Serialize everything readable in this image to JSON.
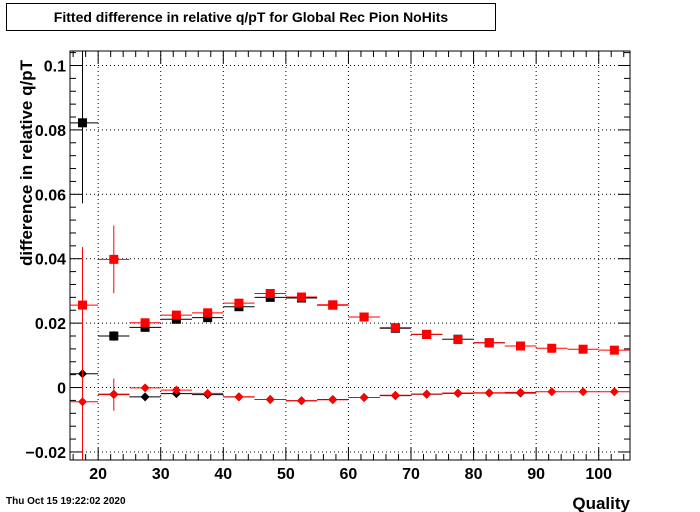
{
  "page": {
    "title": "Fitted difference in relative q/pT for Global Rec Pion NoHits",
    "date_stamp": "Thu Oct 15 19:22:02 2020"
  },
  "chart_data": {
    "type": "scatter",
    "title": "Fitted difference in relative q/pT for Global Rec Pion NoHits",
    "xlabel": "Quality",
    "ylabel": "difference in relative q/pT",
    "xlim": [
      15.5,
      105
    ],
    "ylim": [
      -0.0225,
      0.1045
    ],
    "x_ticks": [
      20,
      30,
      40,
      50,
      60,
      70,
      80,
      90,
      100
    ],
    "x_tick_labels": [
      "20",
      "30",
      "40",
      "50",
      "60",
      "70",
      "80",
      "90",
      "100"
    ],
    "y_ticks": [
      -0.02,
      0,
      0.02,
      0.04,
      0.06,
      0.08,
      0.1
    ],
    "y_tick_labels": [
      "−0.02",
      "0",
      "0.02",
      "0.04",
      "0.06",
      "0.08",
      "0.1"
    ],
    "grid": true,
    "series": [
      {
        "marker": "square",
        "color": "#000000",
        "points": [
          {
            "x": 17.5,
            "y": 0.0822,
            "xerr": 2.5,
            "yerr": 0.025
          },
          {
            "x": 22.5,
            "y": 0.016,
            "xerr": 2.5,
            "yerr": 0.0015
          },
          {
            "x": 27.5,
            "y": 0.0187,
            "xerr": 2.5,
            "yerr": 0.0008
          },
          {
            "x": 32.5,
            "y": 0.0212,
            "xerr": 2.5,
            "yerr": 0.0005
          },
          {
            "x": 37.5,
            "y": 0.0217,
            "xerr": 2.5,
            "yerr": 0.0004
          },
          {
            "x": 42.5,
            "y": 0.0251,
            "xerr": 2.5,
            "yerr": 0.0004
          },
          {
            "x": 47.5,
            "y": 0.028,
            "xerr": 2.5,
            "yerr": 0.0003
          },
          {
            "x": 52.5,
            "y": 0.0278,
            "xerr": 2.5,
            "yerr": 0.0003
          },
          {
            "x": 57.5,
            "y": 0.0256,
            "xerr": 2.5,
            "yerr": 0.0003
          },
          {
            "x": 62.5,
            "y": 0.0219,
            "xerr": 2.5,
            "yerr": 0.0003
          },
          {
            "x": 67.5,
            "y": 0.0184,
            "xerr": 2.5,
            "yerr": 0.0003
          },
          {
            "x": 72.5,
            "y": 0.0165,
            "xerr": 2.5,
            "yerr": 0.0003
          },
          {
            "x": 77.5,
            "y": 0.015,
            "xerr": 2.5,
            "yerr": 0.0003
          },
          {
            "x": 82.5,
            "y": 0.0139,
            "xerr": 2.5,
            "yerr": 0.0003
          },
          {
            "x": 87.5,
            "y": 0.0129,
            "xerr": 2.5,
            "yerr": 0.0003
          }
        ]
      },
      {
        "marker": "square",
        "color": "#ff0000",
        "points": [
          {
            "x": 17.5,
            "y": 0.0256,
            "xerr": 2.5,
            "yerr": 0.018
          },
          {
            "x": 22.5,
            "y": 0.0398,
            "xerr": 2.5,
            "yerr": 0.0105
          },
          {
            "x": 27.5,
            "y": 0.0201,
            "xerr": 2.5,
            "yerr": 0.0012
          },
          {
            "x": 32.5,
            "y": 0.0225,
            "xerr": 2.5,
            "yerr": 0.0008
          },
          {
            "x": 37.5,
            "y": 0.0232,
            "xerr": 2.5,
            "yerr": 0.0006
          },
          {
            "x": 42.5,
            "y": 0.0262,
            "xerr": 2.5,
            "yerr": 0.0005
          },
          {
            "x": 47.5,
            "y": 0.0292,
            "xerr": 2.5,
            "yerr": 0.0005
          },
          {
            "x": 52.5,
            "y": 0.0281,
            "xerr": 2.5,
            "yerr": 0.0004
          },
          {
            "x": 57.5,
            "y": 0.0257,
            "xerr": 2.5,
            "yerr": 0.0004
          },
          {
            "x": 62.5,
            "y": 0.0219,
            "xerr": 2.5,
            "yerr": 0.0004
          },
          {
            "x": 67.5,
            "y": 0.0186,
            "xerr": 2.5,
            "yerr": 0.0004
          },
          {
            "x": 72.5,
            "y": 0.0165,
            "xerr": 2.5,
            "yerr": 0.0004
          },
          {
            "x": 77.5,
            "y": 0.0149,
            "xerr": 2.5,
            "yerr": 0.0004
          },
          {
            "x": 82.5,
            "y": 0.0139,
            "xerr": 2.5,
            "yerr": 0.0004
          },
          {
            "x": 87.5,
            "y": 0.0129,
            "xerr": 2.5,
            "yerr": 0.0004
          },
          {
            "x": 92.5,
            "y": 0.0122,
            "xerr": 2.5,
            "yerr": 0.0004
          },
          {
            "x": 97.5,
            "y": 0.0119,
            "xerr": 2.5,
            "yerr": 0.0004
          },
          {
            "x": 102.5,
            "y": 0.0116,
            "xerr": 2.5,
            "yerr": 0.0004
          }
        ]
      },
      {
        "marker": "diamond",
        "color": "#000000",
        "points": [
          {
            "x": 17.5,
            "y": 0.0043,
            "xerr": 2.5,
            "yerr": 0.0
          },
          {
            "x": 22.5,
            "y": -0.0021,
            "xerr": 2.5,
            "yerr": 0.0008
          },
          {
            "x": 27.5,
            "y": -0.0029,
            "xerr": 2.5,
            "yerr": 0.0004
          },
          {
            "x": 32.5,
            "y": -0.0019,
            "xerr": 2.5,
            "yerr": 0.0003
          },
          {
            "x": 37.5,
            "y": -0.0022,
            "xerr": 2.5,
            "yerr": 0.0003
          },
          {
            "x": 42.5,
            "y": -0.0029,
            "xerr": 2.5,
            "yerr": 0.0002
          },
          {
            "x": 47.5,
            "y": -0.0037,
            "xerr": 2.5,
            "yerr": 0.0002
          },
          {
            "x": 52.5,
            "y": -0.0041,
            "xerr": 2.5,
            "yerr": 0.0002
          },
          {
            "x": 57.5,
            "y": -0.0037,
            "xerr": 2.5,
            "yerr": 0.0002
          },
          {
            "x": 62.5,
            "y": -0.0031,
            "xerr": 2.5,
            "yerr": 0.0002
          },
          {
            "x": 67.5,
            "y": -0.0025,
            "xerr": 2.5,
            "yerr": 0.0002
          },
          {
            "x": 72.5,
            "y": -0.0021,
            "xerr": 2.5,
            "yerr": 0.0002
          },
          {
            "x": 77.5,
            "y": -0.0018,
            "xerr": 2.5,
            "yerr": 0.0002
          },
          {
            "x": 82.5,
            "y": -0.0017,
            "xerr": 2.5,
            "yerr": 0.0002
          },
          {
            "x": 87.5,
            "y": -0.0017,
            "xerr": 2.5,
            "yerr": 0.0002
          }
        ]
      },
      {
        "marker": "diamond",
        "color": "#ff0000",
        "points": [
          {
            "x": 17.5,
            "y": -0.0044,
            "xerr": 2.5,
            "yerr": 0.021
          },
          {
            "x": 22.5,
            "y": -0.0022,
            "xerr": 2.5,
            "yerr": 0.005
          },
          {
            "x": 27.5,
            "y": -0.0001,
            "xerr": 2.5,
            "yerr": 0.0006
          },
          {
            "x": 32.5,
            "y": -0.0008,
            "xerr": 2.5,
            "yerr": 0.0004
          },
          {
            "x": 37.5,
            "y": -0.0018,
            "xerr": 2.5,
            "yerr": 0.0003
          },
          {
            "x": 42.5,
            "y": -0.0029,
            "xerr": 2.5,
            "yerr": 0.0003
          },
          {
            "x": 47.5,
            "y": -0.0037,
            "xerr": 2.5,
            "yerr": 0.0002
          },
          {
            "x": 52.5,
            "y": -0.0041,
            "xerr": 2.5,
            "yerr": 0.0002
          },
          {
            "x": 57.5,
            "y": -0.0038,
            "xerr": 2.5,
            "yerr": 0.0002
          },
          {
            "x": 62.5,
            "y": -0.0031,
            "xerr": 2.5,
            "yerr": 0.0002
          },
          {
            "x": 67.5,
            "y": -0.0024,
            "xerr": 2.5,
            "yerr": 0.0002
          },
          {
            "x": 72.5,
            "y": -0.002,
            "xerr": 2.5,
            "yerr": 0.0002
          },
          {
            "x": 77.5,
            "y": -0.0017,
            "xerr": 2.5,
            "yerr": 0.0002
          },
          {
            "x": 82.5,
            "y": -0.0016,
            "xerr": 2.5,
            "yerr": 0.0002
          },
          {
            "x": 87.5,
            "y": -0.0015,
            "xerr": 2.5,
            "yerr": 0.0002
          },
          {
            "x": 92.5,
            "y": -0.0013,
            "xerr": 2.5,
            "yerr": 0.0002
          },
          {
            "x": 97.5,
            "y": -0.0013,
            "xerr": 2.5,
            "yerr": 0.0002
          },
          {
            "x": 102.5,
            "y": -0.0013,
            "xerr": 2.5,
            "yerr": 0.0002
          }
        ]
      }
    ]
  }
}
